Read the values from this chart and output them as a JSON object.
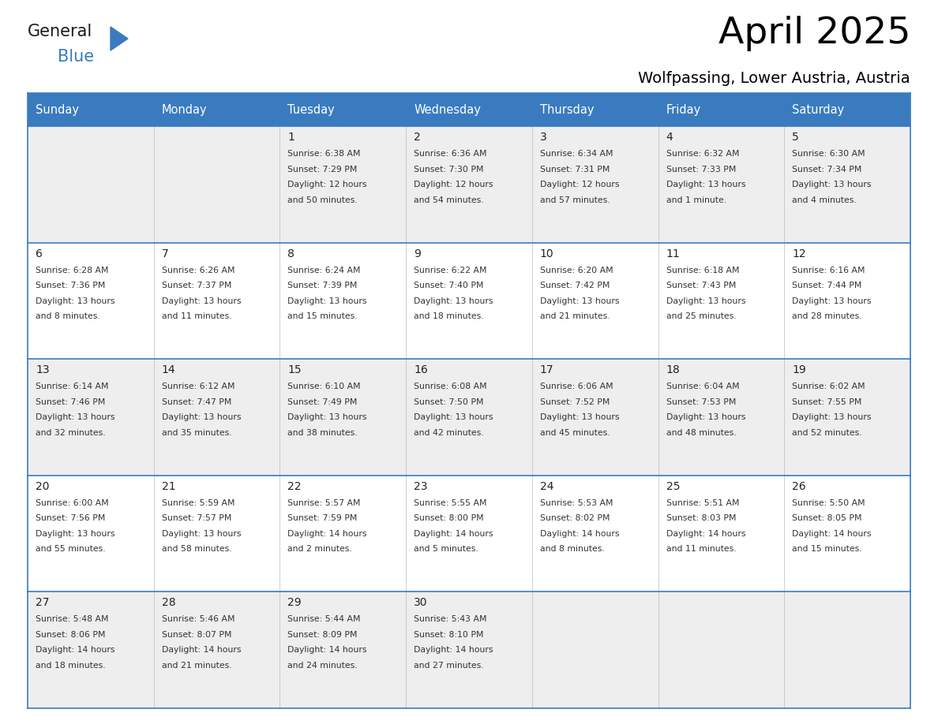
{
  "title": "April 2025",
  "subtitle": "Wolfpassing, Lower Austria, Austria",
  "header_color": "#3a7bbf",
  "header_text_color": "#ffffff",
  "row_colors": [
    "#eeeeee",
    "#ffffff"
  ],
  "border_color": "#3a7bbf",
  "text_color": "#333333",
  "days_of_week": [
    "Sunday",
    "Monday",
    "Tuesday",
    "Wednesday",
    "Thursday",
    "Friday",
    "Saturday"
  ],
  "calendar": [
    [
      {
        "day": "",
        "info": ""
      },
      {
        "day": "",
        "info": ""
      },
      {
        "day": "1",
        "info": "Sunrise: 6:38 AM\nSunset: 7:29 PM\nDaylight: 12 hours\nand 50 minutes."
      },
      {
        "day": "2",
        "info": "Sunrise: 6:36 AM\nSunset: 7:30 PM\nDaylight: 12 hours\nand 54 minutes."
      },
      {
        "day": "3",
        "info": "Sunrise: 6:34 AM\nSunset: 7:31 PM\nDaylight: 12 hours\nand 57 minutes."
      },
      {
        "day": "4",
        "info": "Sunrise: 6:32 AM\nSunset: 7:33 PM\nDaylight: 13 hours\nand 1 minute."
      },
      {
        "day": "5",
        "info": "Sunrise: 6:30 AM\nSunset: 7:34 PM\nDaylight: 13 hours\nand 4 minutes."
      }
    ],
    [
      {
        "day": "6",
        "info": "Sunrise: 6:28 AM\nSunset: 7:36 PM\nDaylight: 13 hours\nand 8 minutes."
      },
      {
        "day": "7",
        "info": "Sunrise: 6:26 AM\nSunset: 7:37 PM\nDaylight: 13 hours\nand 11 minutes."
      },
      {
        "day": "8",
        "info": "Sunrise: 6:24 AM\nSunset: 7:39 PM\nDaylight: 13 hours\nand 15 minutes."
      },
      {
        "day": "9",
        "info": "Sunrise: 6:22 AM\nSunset: 7:40 PM\nDaylight: 13 hours\nand 18 minutes."
      },
      {
        "day": "10",
        "info": "Sunrise: 6:20 AM\nSunset: 7:42 PM\nDaylight: 13 hours\nand 21 minutes."
      },
      {
        "day": "11",
        "info": "Sunrise: 6:18 AM\nSunset: 7:43 PM\nDaylight: 13 hours\nand 25 minutes."
      },
      {
        "day": "12",
        "info": "Sunrise: 6:16 AM\nSunset: 7:44 PM\nDaylight: 13 hours\nand 28 minutes."
      }
    ],
    [
      {
        "day": "13",
        "info": "Sunrise: 6:14 AM\nSunset: 7:46 PM\nDaylight: 13 hours\nand 32 minutes."
      },
      {
        "day": "14",
        "info": "Sunrise: 6:12 AM\nSunset: 7:47 PM\nDaylight: 13 hours\nand 35 minutes."
      },
      {
        "day": "15",
        "info": "Sunrise: 6:10 AM\nSunset: 7:49 PM\nDaylight: 13 hours\nand 38 minutes."
      },
      {
        "day": "16",
        "info": "Sunrise: 6:08 AM\nSunset: 7:50 PM\nDaylight: 13 hours\nand 42 minutes."
      },
      {
        "day": "17",
        "info": "Sunrise: 6:06 AM\nSunset: 7:52 PM\nDaylight: 13 hours\nand 45 minutes."
      },
      {
        "day": "18",
        "info": "Sunrise: 6:04 AM\nSunset: 7:53 PM\nDaylight: 13 hours\nand 48 minutes."
      },
      {
        "day": "19",
        "info": "Sunrise: 6:02 AM\nSunset: 7:55 PM\nDaylight: 13 hours\nand 52 minutes."
      }
    ],
    [
      {
        "day": "20",
        "info": "Sunrise: 6:00 AM\nSunset: 7:56 PM\nDaylight: 13 hours\nand 55 minutes."
      },
      {
        "day": "21",
        "info": "Sunrise: 5:59 AM\nSunset: 7:57 PM\nDaylight: 13 hours\nand 58 minutes."
      },
      {
        "day": "22",
        "info": "Sunrise: 5:57 AM\nSunset: 7:59 PM\nDaylight: 14 hours\nand 2 minutes."
      },
      {
        "day": "23",
        "info": "Sunrise: 5:55 AM\nSunset: 8:00 PM\nDaylight: 14 hours\nand 5 minutes."
      },
      {
        "day": "24",
        "info": "Sunrise: 5:53 AM\nSunset: 8:02 PM\nDaylight: 14 hours\nand 8 minutes."
      },
      {
        "day": "25",
        "info": "Sunrise: 5:51 AM\nSunset: 8:03 PM\nDaylight: 14 hours\nand 11 minutes."
      },
      {
        "day": "26",
        "info": "Sunrise: 5:50 AM\nSunset: 8:05 PM\nDaylight: 14 hours\nand 15 minutes."
      }
    ],
    [
      {
        "day": "27",
        "info": "Sunrise: 5:48 AM\nSunset: 8:06 PM\nDaylight: 14 hours\nand 18 minutes."
      },
      {
        "day": "28",
        "info": "Sunrise: 5:46 AM\nSunset: 8:07 PM\nDaylight: 14 hours\nand 21 minutes."
      },
      {
        "day": "29",
        "info": "Sunrise: 5:44 AM\nSunset: 8:09 PM\nDaylight: 14 hours\nand 24 minutes."
      },
      {
        "day": "30",
        "info": "Sunrise: 5:43 AM\nSunset: 8:10 PM\nDaylight: 14 hours\nand 27 minutes."
      },
      {
        "day": "",
        "info": ""
      },
      {
        "day": "",
        "info": ""
      },
      {
        "day": "",
        "info": ""
      }
    ]
  ],
  "logo_color_general": "#1a1a1a",
  "logo_color_blue": "#3a7bbf",
  "fig_width": 11.88,
  "fig_height": 9.18,
  "dpi": 100
}
